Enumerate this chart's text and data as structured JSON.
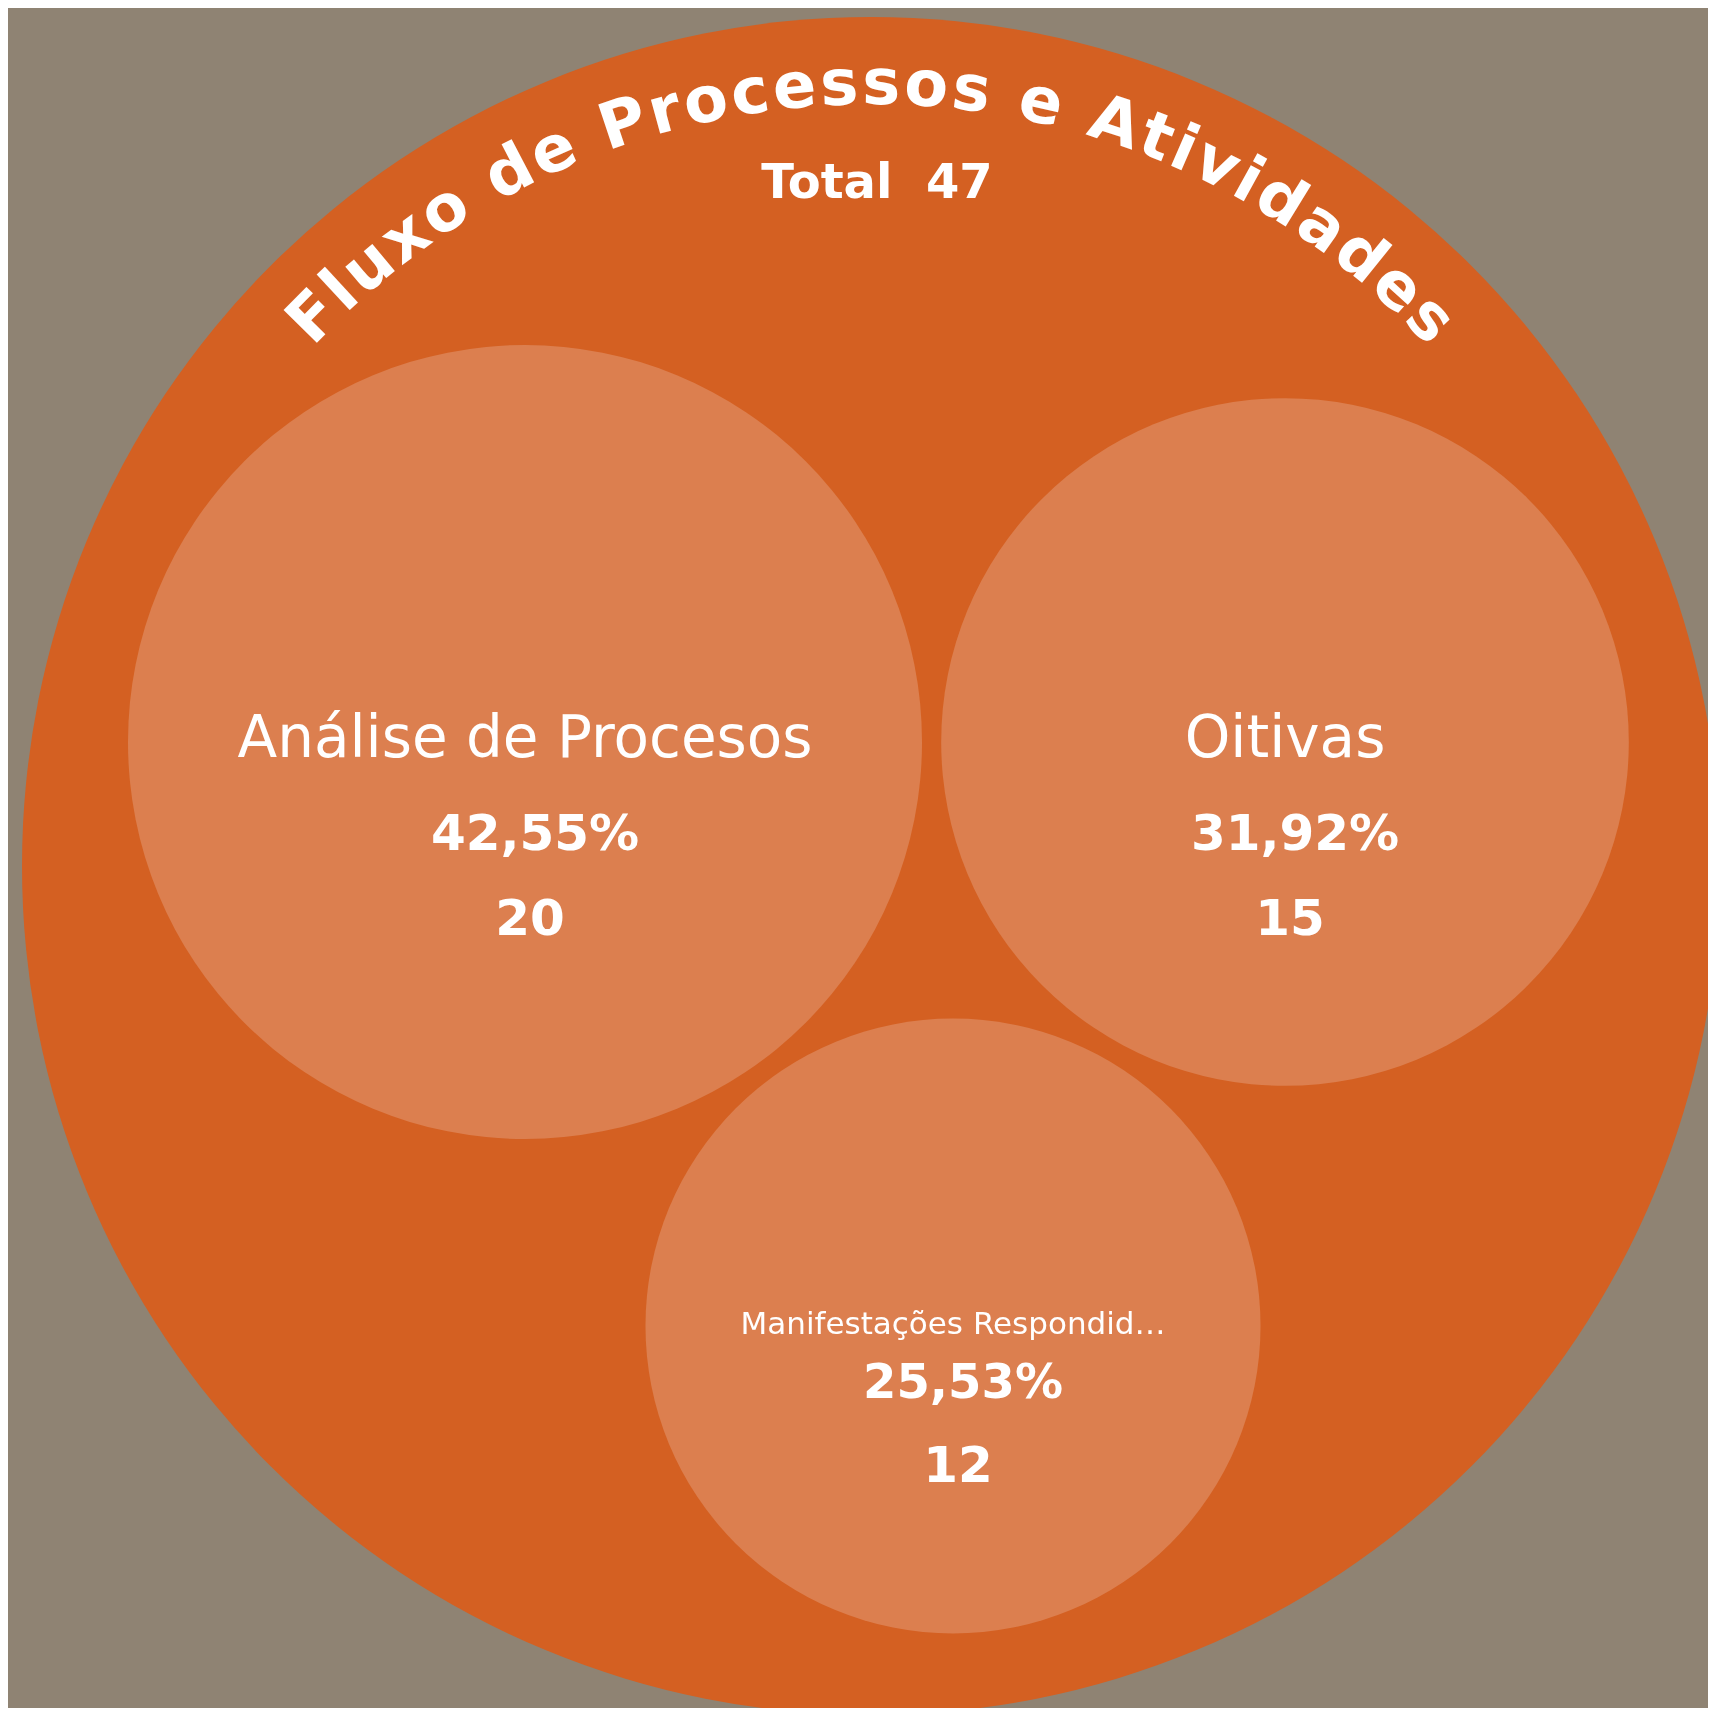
{
  "chart_data": {
    "type": "other",
    "title": "Fluxo de Processos e Atividades",
    "subtitle": "Total  47",
    "categories": [
      "Análise de Procesos",
      "Oitivas",
      "Manifestações Respondid…"
    ],
    "values": [
      20,
      15,
      12
    ],
    "colors": [
      "#dc7f4f",
      "#dc7f4f",
      "#dc7f4f"
    ],
    "data_labels": true,
    "annotations": [
      "42,55%",
      "31,92%",
      "25,53%"
    ]
  }
}
